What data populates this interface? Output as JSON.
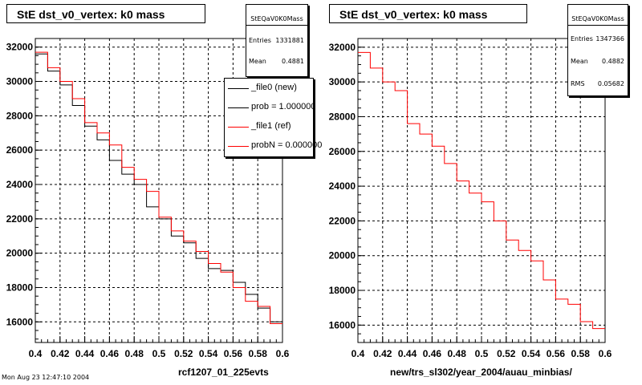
{
  "footer": "Mon Aug 23 12:47:10 2004",
  "chart_data": [
    {
      "type": "line",
      "title": "StE dst_v0_vertex: k0 mass",
      "xlabel": "rcf1207_01_225evts",
      "xlim": [
        0.4,
        0.6
      ],
      "ylim": [
        14800,
        32500
      ],
      "xticks": [
        "0.4",
        "0.42",
        "0.44",
        "0.46",
        "0.48",
        "0.5",
        "0.52",
        "0.54",
        "0.56",
        "0.58",
        "0.6"
      ],
      "yticks": [
        "16000",
        "18000",
        "20000",
        "22000",
        "24000",
        "26000",
        "28000",
        "30000",
        "32000"
      ],
      "yticks_values": [
        16000,
        18000,
        20000,
        22000,
        24000,
        26000,
        28000,
        30000,
        32000
      ],
      "grid": true,
      "stats": {
        "name": "StEQaV0K0Mass",
        "entries_label": "Entries",
        "entries": "1331881",
        "mean_label": "Mean",
        "mean": "0.4881"
      },
      "legend": {
        "placement": "top-right",
        "entries": [
          {
            "label": "_file0 (new)",
            "color": "#000000"
          },
          {
            "label": "prob = 1.000000",
            "color": "#000000"
          },
          {
            "label": "_file1 (ref)",
            "color": "#ff0000"
          },
          {
            "label": "probN = 0.000000",
            "color": "#ff0000"
          }
        ]
      },
      "bin_edges": [
        0.4,
        0.41,
        0.42,
        0.43,
        0.44,
        0.45,
        0.46,
        0.47,
        0.48,
        0.49,
        0.5,
        0.51,
        0.52,
        0.53,
        0.54,
        0.55,
        0.56,
        0.57,
        0.58,
        0.59,
        0.6
      ],
      "series": [
        {
          "name": "_file0 (new)",
          "color": "#000000",
          "values": [
            31600,
            30600,
            29800,
            28600,
            27400,
            26600,
            25400,
            24600,
            24000,
            22700,
            22000,
            21000,
            20600,
            19700,
            19100,
            19000,
            18300,
            17600,
            16800,
            16000
          ]
        },
        {
          "name": "_file1 (ref)",
          "color": "#ff0000",
          "values": [
            31700,
            30800,
            30000,
            29000,
            27600,
            27000,
            26300,
            25000,
            24300,
            23600,
            22100,
            21300,
            20700,
            20100,
            19400,
            18900,
            18000,
            17200,
            16900,
            15900
          ]
        }
      ]
    },
    {
      "type": "line",
      "title": "StE dst_v0_vertex: k0 mass",
      "xlabel": "new/trs_sl302/year_2004/auau_minbias/",
      "xlim": [
        0.4,
        0.6
      ],
      "ylim": [
        15000,
        32500
      ],
      "xticks": [
        "0.4",
        "0.42",
        "0.44",
        "0.46",
        "0.48",
        "0.5",
        "0.52",
        "0.54",
        "0.56",
        "0.58",
        "0.6"
      ],
      "yticks": [
        "16000",
        "18000",
        "20000",
        "22000",
        "24000",
        "26000",
        "28000",
        "30000",
        "32000"
      ],
      "yticks_values": [
        16000,
        18000,
        20000,
        22000,
        24000,
        26000,
        28000,
        30000,
        32000
      ],
      "grid": true,
      "stats": {
        "name": "StEQaV0K0Mass",
        "entries_label": "Entries",
        "entries": "1347366",
        "mean_label": "Mean",
        "mean": "0.4882",
        "rms_label": "RMS",
        "rms": "0.05682"
      },
      "bin_edges": [
        0.4,
        0.41,
        0.42,
        0.43,
        0.44,
        0.45,
        0.46,
        0.47,
        0.48,
        0.49,
        0.5,
        0.51,
        0.52,
        0.53,
        0.54,
        0.55,
        0.56,
        0.57,
        0.58,
        0.59,
        0.6
      ],
      "series": [
        {
          "color": "#ff0000",
          "values": [
            31700,
            30800,
            30000,
            29500,
            27600,
            27000,
            26300,
            25300,
            24300,
            23600,
            23100,
            22000,
            20900,
            20300,
            19700,
            18600,
            17500,
            17200,
            16200,
            15800
          ]
        }
      ]
    }
  ]
}
